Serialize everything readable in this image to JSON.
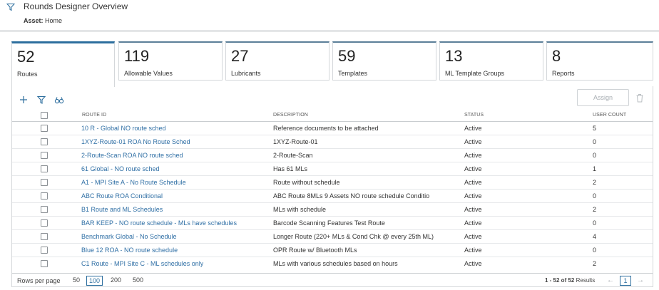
{
  "header": {
    "title": "Rounds Designer Overview",
    "asset_label": "Asset:",
    "asset_value": "Home"
  },
  "cards": [
    {
      "count": "52",
      "label": "Routes"
    },
    {
      "count": "119",
      "label": "Allowable Values"
    },
    {
      "count": "27",
      "label": "Lubricants"
    },
    {
      "count": "59",
      "label": "Templates"
    },
    {
      "count": "13",
      "label": "ML Template Groups"
    },
    {
      "count": "8",
      "label": "Reports"
    }
  ],
  "toolbar": {
    "icons": [
      "plus-icon",
      "filter-icon",
      "binoculars-icon",
      "trash-icon"
    ],
    "assign_label": "Assign"
  },
  "table": {
    "columns": {
      "route_id": "ROUTE ID",
      "description": "DESCRIPTION",
      "status": "STATUS",
      "user_count": "USER COUNT"
    },
    "rows": [
      {
        "route_id": "10 R - Global NO route sched",
        "description": "Reference documents to be attached",
        "status": "Active",
        "user_count": "5"
      },
      {
        "route_id": "1XYZ-Route-01 ROA No Route Sched",
        "description": "1XYZ-Route-01",
        "status": "Active",
        "user_count": "0"
      },
      {
        "route_id": "2-Route-Scan ROA NO route sched",
        "description": "2-Route-Scan",
        "status": "Active",
        "user_count": "0"
      },
      {
        "route_id": "61 Global - NO route sched",
        "description": "Has 61 MLs",
        "status": "Active",
        "user_count": "1"
      },
      {
        "route_id": "A1 - MPI Site A - No Route Schedule",
        "description": "Route without schedule",
        "status": "Active",
        "user_count": "2"
      },
      {
        "route_id": "ABC Route ROA Conditional",
        "description": "ABC Route 8MLs 9 Assets NO route schedule Conditio",
        "status": "Active",
        "user_count": "0"
      },
      {
        "route_id": "B1 Route and ML Schedules",
        "description": "MLs with schedule",
        "status": "Active",
        "user_count": "2"
      },
      {
        "route_id": "BAR KEEP - NO route schedule - MLs have schedules",
        "description": "Barcode Scanning Features Test Route",
        "status": "Active",
        "user_count": "0"
      },
      {
        "route_id": "Benchmark Global - No Schedule",
        "description": "Longer Route (220+ MLs & Cond Chk @ every 25th ML)",
        "status": "Active",
        "user_count": "4"
      },
      {
        "route_id": "Blue 12 ROA - NO route schedule",
        "description": "OPR Route w/ Bluetooth MLs",
        "status": "Active",
        "user_count": "0"
      },
      {
        "route_id": "C1 Route - MPI Site C - ML schedules only",
        "description": "MLs with various schedules based on hours",
        "status": "Active",
        "user_count": "2"
      }
    ]
  },
  "footer": {
    "rows_per_page_label": "Rows per page",
    "page_sizes": [
      "50",
      "100",
      "200",
      "500"
    ],
    "selected_page_size": "100",
    "results_range": "1 - 52 of 52",
    "results_word": "Results",
    "current_page": "1"
  },
  "colors": {
    "accent": "#2d6e9e",
    "link": "#2f6fa5"
  }
}
